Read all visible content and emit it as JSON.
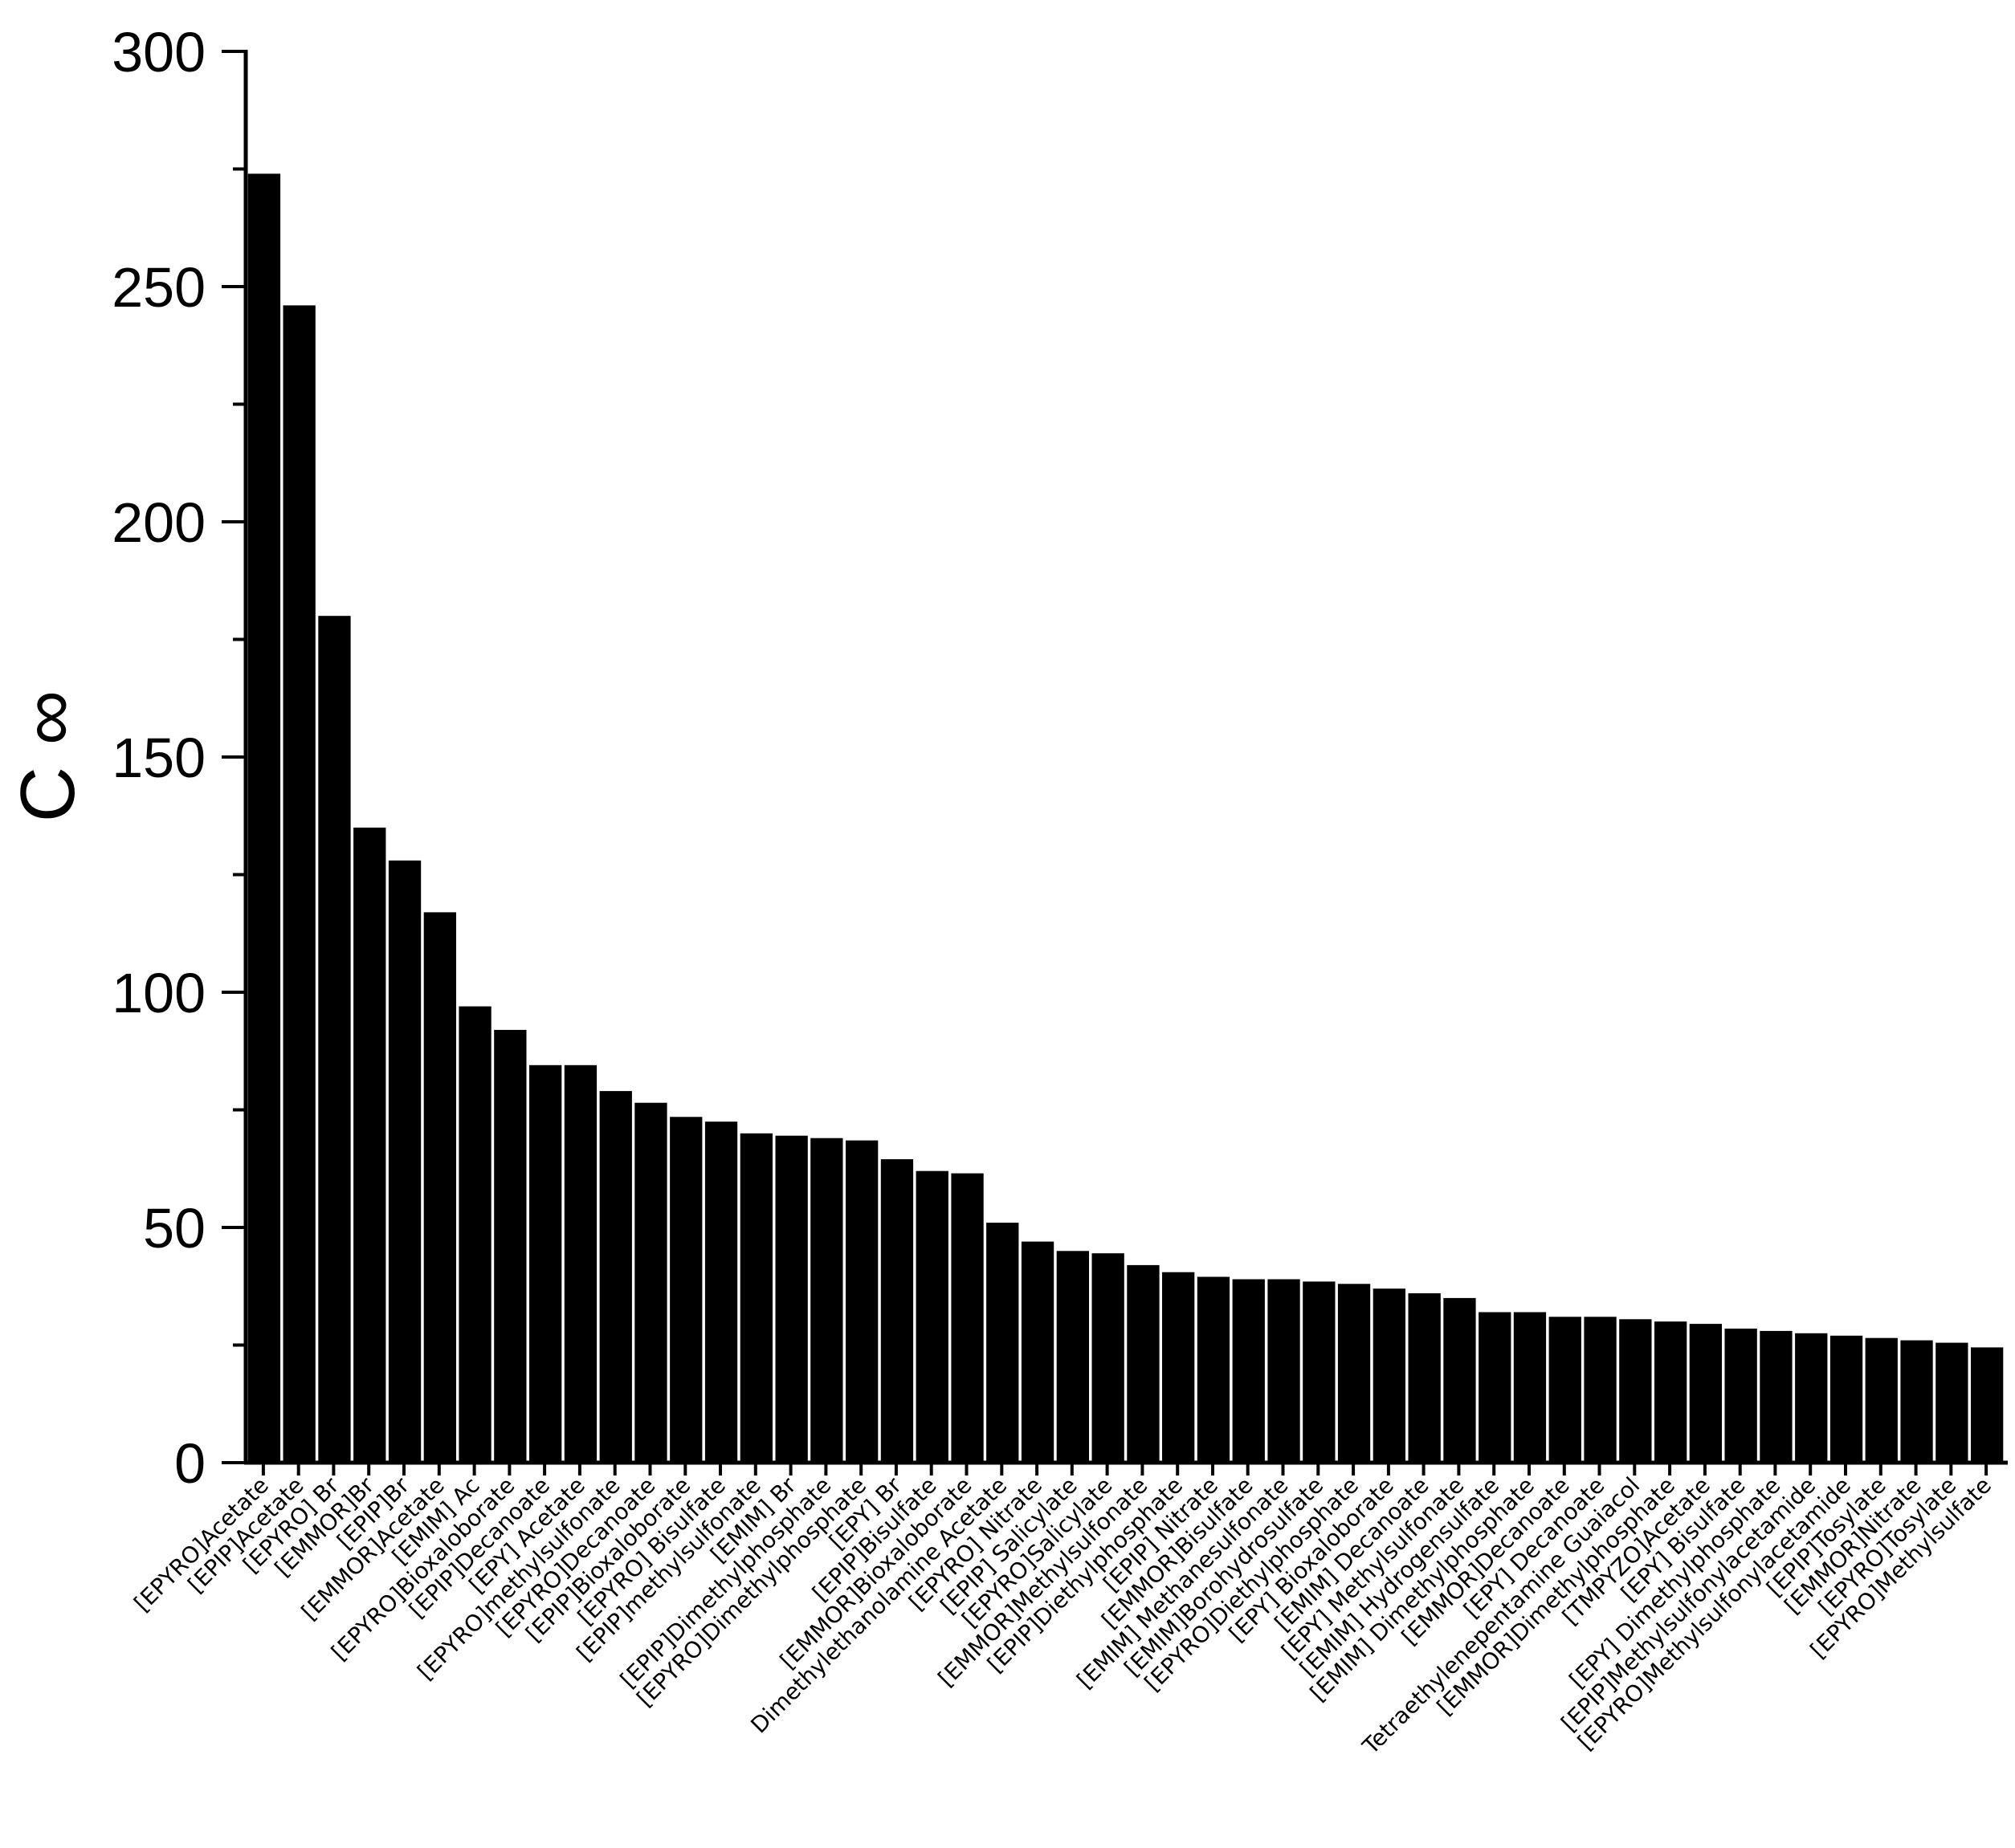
{
  "chart_data": {
    "type": "bar",
    "title": "",
    "xlabel": "",
    "ylabel": "C ∞",
    "ylim": [
      0,
      300
    ],
    "yticks": [
      0,
      50,
      100,
      150,
      200,
      250,
      300
    ],
    "grid": false,
    "bar_color": "#000000",
    "categories": [
      "[EPYRO]Acetate",
      "[EPIP]Acetate",
      "[EPYRO] Br",
      "[EMMOR]Br",
      "[EPIP]Br",
      "[EMMOR]Acetate",
      "[EMIM] Ac",
      "[EPYRO]Bioxaloborate",
      "[EPIP]Decanoate",
      "[EPY]  Acetate",
      "[EPYRO]methylsulfonate",
      "[EPYRO]Decanoate",
      "[EPIP]Bioxaloborate",
      "[EPYRO] Bisulfate",
      "[EPIP]methylsulfonate",
      "[EMIM] Br",
      "[EPIP]Dimethylphosphate",
      "[EPYRO]Dimethylphosphate",
      "[EPY] Br",
      "[EPIP]Bisulfate",
      "[EMMOR]Bioxaloborate",
      "Dimethylethanolamine Acetate",
      "[EPYRO] Nitrate",
      "[EPIP] Salicylate",
      "[EPYRO]Salicylate",
      "[EMMOR]Methylsulfonate",
      "[EPIP]Diethylphosphate",
      "[EPIP] Nitrate",
      "[EMMOR]Bisulfate",
      "[EMIM] Methanesulfonate",
      "[EMIM]Borohydrosulfate",
      "[EPYRO]Diethylphosphate",
      "[EPY]  Bioxaloborate",
      "[EMIM] Decanoate",
      "[EPY] Methylsulfonate",
      "[EMIM] Hydrogensulfate",
      "[EMIM]  Dimethylphosphate",
      "[EMMOR]Decanoate",
      "[EPY]  Decanoate",
      "Tetraethylenepentamine Guaiacol",
      "[EMMOR]Dimethylphosphate",
      "[TMPYZO]Acetate",
      "[EPY]  Bisulfate",
      "[EPY]  Dimethylphosphate",
      "[EPIP]Methylsulfonylacetamide",
      "[EPYRO]Methylsulfonylacetamide",
      "[EPIP]Tosylate",
      "[EMMOR]Nitrate",
      "[EPYRO]Tosylate",
      "[EPYRO]Methylsulfate"
    ],
    "values": [
      274,
      246,
      180,
      135,
      128,
      117,
      97,
      92,
      84.5,
      84.5,
      79,
      76.5,
      73.5,
      72.5,
      70,
      69.5,
      69,
      68.5,
      64.5,
      62,
      61.5,
      51,
      47,
      45,
      44.5,
      42,
      40.5,
      39.5,
      39,
      39,
      38.5,
      38,
      37,
      36,
      35,
      32,
      32,
      31,
      31,
      30.5,
      30,
      29.5,
      28.5,
      28,
      27.5,
      27,
      26.5,
      26,
      25.5,
      24.5
    ]
  }
}
